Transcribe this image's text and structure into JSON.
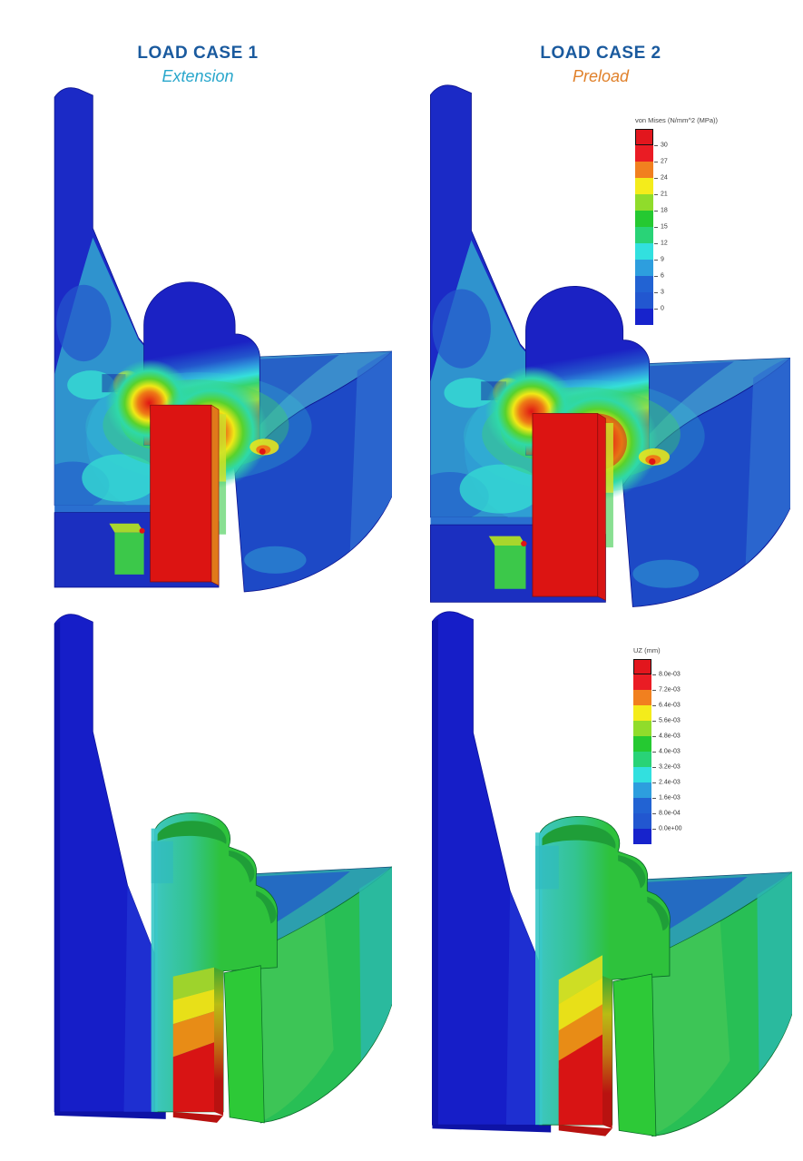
{
  "header": {
    "load_case_1": {
      "title": "LOAD CASE 1",
      "subtitle": "Extension",
      "title_color": "#1a5a9e",
      "subtitle_color": "#29a7cc"
    },
    "load_case_2": {
      "title": "LOAD CASE 2",
      "subtitle": "Preload",
      "title_color": "#1a5a9e",
      "subtitle_color": "#e0802a"
    }
  },
  "legends": [
    {
      "id": "stress",
      "title": "von Mises (N/mm^2 (MPa))",
      "tick_labels": [
        "30",
        "27",
        "24",
        "21",
        "18",
        "15",
        "12",
        "9",
        "6",
        "3",
        "0"
      ],
      "band_colors": [
        "#e2161d",
        "#ea1c24",
        "#f1801f",
        "#f4ec1b",
        "#90dc2b",
        "#25c931",
        "#29d377",
        "#32e0df",
        "#2d9ede",
        "#2263d3",
        "#2257d0",
        "#1723cc"
      ]
    },
    {
      "id": "disp",
      "title": "UZ (mm)",
      "tick_labels": [
        "8.0e-03",
        "7.2e-03",
        "6.4e-03",
        "5.6e-03",
        "4.8e-03",
        "4.0e-03",
        "3.2e-03",
        "2.4e-03",
        "1.6e-03",
        "8.0e-04",
        "0.0e+00"
      ],
      "band_colors": [
        "#e2161d",
        "#ea1c24",
        "#f1801f",
        "#f4ec1b",
        "#90dc2b",
        "#25c931",
        "#29d377",
        "#32e0df",
        "#2d9ede",
        "#2263d3",
        "#2257d0",
        "#1723cc"
      ]
    }
  ],
  "plots": [
    {
      "id": "stress-lc1",
      "load_case": "LOAD CASE 1",
      "condition": "Extension",
      "quantity": "von Mises stress"
    },
    {
      "id": "stress-lc2",
      "load_case": "LOAD CASE 2",
      "condition": "Preload",
      "quantity": "von Mises stress"
    },
    {
      "id": "disp-lc1",
      "load_case": "LOAD CASE 1",
      "condition": "Extension",
      "quantity": "Vertical displacement UZ"
    },
    {
      "id": "disp-lc2",
      "load_case": "LOAD CASE 2",
      "condition": "Preload",
      "quantity": "Vertical displacement UZ"
    }
  ],
  "chart_data": [
    {
      "type": "heatmap",
      "plot": "top-left",
      "load_case": "LOAD CASE 1",
      "condition": "Extension",
      "quantity": "von Mises stress",
      "units": "N/mm^2 (MPa)",
      "scale_min": 0,
      "scale_max": 30,
      "scale_ticks": [
        30,
        27,
        24,
        21,
        18,
        15,
        12,
        9,
        6,
        3,
        0
      ],
      "summary": "Sectioned 3D FEA contour plot: bolt shank at or above scale max (red, ~30 MPa) with orange side face, stress concentration rings (red-orange-yellow-green) around the bolt seat and boss, surrounding housing and quarter-cylinder mostly 0-9 MPa (blue/teal)."
    },
    {
      "type": "heatmap",
      "plot": "top-right",
      "load_case": "LOAD CASE 2",
      "condition": "Preload",
      "quantity": "von Mises stress",
      "units": "N/mm^2 (MPa)",
      "scale_min": 0,
      "scale_max": 30,
      "scale_ticks": [
        30,
        27,
        24,
        21,
        18,
        15,
        12,
        9,
        6,
        3,
        0
      ],
      "summary": "Same sectioned model under preload: bolt fully saturated red (>=30 MPa) on both visible faces, slightly larger green/yellow concentration halo around the seat, remaining bodies blue/teal (0-9 MPa)."
    },
    {
      "type": "heatmap",
      "plot": "bottom-left",
      "load_case": "LOAD CASE 1",
      "condition": "Extension",
      "quantity": "Vertical displacement UZ",
      "units": "mm",
      "scale_min": 0.0,
      "scale_max": 0.008,
      "scale_ticks": [
        "8.0e-03",
        "7.2e-03",
        "6.4e-03",
        "5.6e-03",
        "4.8e-03",
        "4.0e-03",
        "3.2e-03",
        "2.4e-03",
        "1.6e-03",
        "8.0e-04",
        "0.0e+00"
      ],
      "summary": "Displacement plot: fixed left housing at ~0 mm (dark blue), central hub/quarter-cylinder around 3-5e-03 mm (teal/green), bolt tip graded yellow-orange-red reaching ~8e-03 mm at the bottom."
    },
    {
      "type": "heatmap",
      "plot": "bottom-right",
      "load_case": "LOAD CASE 2",
      "condition": "Preload",
      "quantity": "Vertical displacement UZ",
      "units": "mm",
      "scale_min": 0.0,
      "scale_max": 0.008,
      "scale_ticks": [
        "8.0e-03",
        "7.2e-03",
        "6.4e-03",
        "5.6e-03",
        "4.8e-03",
        "4.0e-03",
        "3.2e-03",
        "2.4e-03",
        "1.6e-03",
        "8.0e-04",
        "0.0e+00"
      ],
      "summary": "Displacement plot under preload: left housing ~0 mm (dark blue), hub and quarter-cylinder green/teal, bolt with steeper diagonal gradient and a larger red zone (~8e-03 mm) at its lower end."
    }
  ]
}
